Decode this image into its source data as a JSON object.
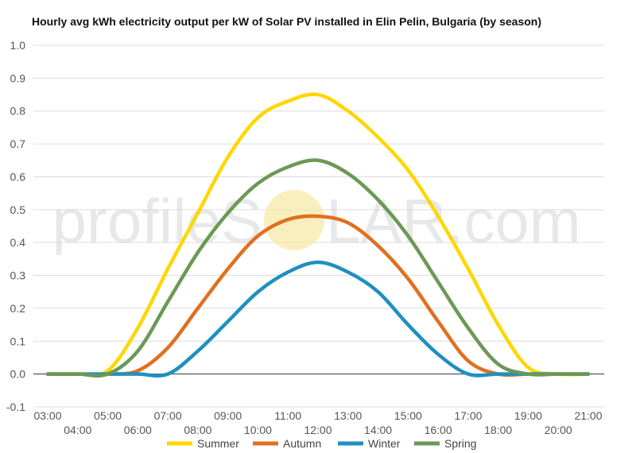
{
  "watermark": {
    "left": "profileS",
    "right": "LAR.com",
    "sun_color": "#f7e9a8"
  },
  "chart_data": {
    "type": "line",
    "title": "Hourly avg kWh electricity output per kW of Solar PV installed in Elin Pelin, Bulgaria (by season)",
    "xlabel": "",
    "ylabel": "",
    "ylim": [
      -0.1,
      1.0
    ],
    "yticks": [
      "-0.1",
      "0.0",
      "0.1",
      "0.2",
      "0.3",
      "0.4",
      "0.5",
      "0.6",
      "0.7",
      "0.8",
      "0.9",
      "1.0"
    ],
    "categories": [
      "03:00",
      "04:00",
      "05:00",
      "06:00",
      "07:00",
      "08:00",
      "09:00",
      "10:00",
      "11:00",
      "12:00",
      "13:00",
      "14:00",
      "15:00",
      "16:00",
      "17:00",
      "18:00",
      "19:00",
      "20:00",
      "21:00"
    ],
    "grid": true,
    "legend_position": "bottom",
    "series": [
      {
        "name": "Summer",
        "color": "#ffd700",
        "values": [
          0.0,
          0.0,
          0.01,
          0.14,
          0.32,
          0.49,
          0.66,
          0.78,
          0.83,
          0.85,
          0.8,
          0.72,
          0.62,
          0.48,
          0.32,
          0.15,
          0.02,
          0.0,
          0.0
        ]
      },
      {
        "name": "Autumn",
        "color": "#e07020",
        "values": [
          0.0,
          0.0,
          0.0,
          0.01,
          0.08,
          0.2,
          0.32,
          0.42,
          0.47,
          0.48,
          0.46,
          0.39,
          0.29,
          0.16,
          0.04,
          0.0,
          0.0,
          0.0,
          0.0
        ]
      },
      {
        "name": "Winter",
        "color": "#1e90c0",
        "values": [
          0.0,
          0.0,
          0.0,
          0.0,
          0.0,
          0.07,
          0.16,
          0.25,
          0.31,
          0.34,
          0.31,
          0.25,
          0.15,
          0.06,
          0.0,
          0.0,
          0.0,
          0.0,
          0.0
        ]
      },
      {
        "name": "Spring",
        "color": "#6a9955",
        "values": [
          0.0,
          0.0,
          0.0,
          0.07,
          0.22,
          0.37,
          0.49,
          0.58,
          0.63,
          0.65,
          0.61,
          0.53,
          0.42,
          0.28,
          0.14,
          0.03,
          0.0,
          0.0,
          0.0
        ]
      }
    ]
  }
}
